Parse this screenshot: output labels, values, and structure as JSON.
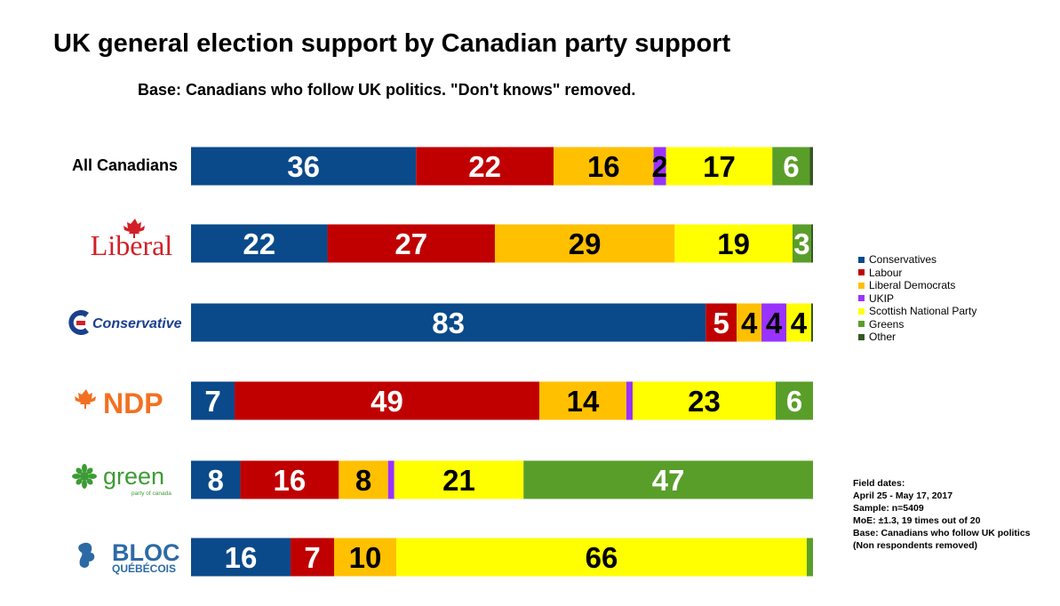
{
  "colors": {
    "Conservatives": "#0a4a8a",
    "Labour": "#c00000",
    "Liberal Democrats": "#ffc000",
    "UKIP": "#9933ff",
    "Scottish National Party": "#ffff00",
    "Greens": "#5a9e2a",
    "Other": "#375623"
  },
  "logos": {
    "liberal": {
      "text": "Liberal",
      "color": "#d21f26"
    },
    "conservative": {
      "text": "Conservative",
      "color": "#1a3f8f"
    },
    "ndp": {
      "text": "NDP",
      "color": "#f37021"
    },
    "green": {
      "text": "green",
      "sub": "party of canada",
      "color": "#3d9b35"
    },
    "bloc": {
      "text": "BLOC",
      "sub": "QUÉBÉCOIS",
      "color": "#2c6aa5"
    }
  },
  "notes": {
    "line1": "Field dates:",
    "line2": "April 25 - May 17, 2017",
    "line3": "Sample: n=5409",
    "line4": "MoE: ±1.3, 19 times out of 20",
    "line5": "Base: Canadians who follow UK politics",
    "line6": "(Non respondents removed)"
  },
  "chart_data": {
    "type": "bar",
    "orientation": "horizontal",
    "stacked": true,
    "title": "UK general election support by Canadian party support",
    "subtitle": "Base: Canadians who follow UK politics. \"Don't knows\" removed.",
    "categories": [
      "All Canadians",
      "Liberal",
      "Conservative",
      "NDP",
      "Green",
      "Bloc Québécois"
    ],
    "category_labels": [
      "All Canadians",
      "",
      "",
      "",
      "",
      ""
    ],
    "legend_position": "right",
    "series": [
      {
        "name": "Conservatives",
        "values": [
          36,
          22,
          83,
          7,
          8,
          16
        ]
      },
      {
        "name": "Labour",
        "values": [
          22,
          27,
          5,
          49,
          16,
          7
        ]
      },
      {
        "name": "Liberal Democrats",
        "values": [
          16,
          29,
          4,
          14,
          8,
          10
        ]
      },
      {
        "name": "UKIP",
        "values": [
          2,
          0,
          4,
          1,
          1,
          0
        ]
      },
      {
        "name": "Scottish National Party",
        "values": [
          17,
          19,
          4,
          23,
          21,
          66
        ]
      },
      {
        "name": "Greens",
        "values": [
          6,
          3,
          0,
          6,
          47,
          1
        ]
      },
      {
        "name": "Other",
        "values": [
          0.5,
          0.3,
          0.3,
          0,
          0,
          0
        ]
      }
    ],
    "data_labels": [
      [
        "36",
        "22",
        "16",
        "2",
        "17",
        "6",
        ""
      ],
      [
        "22",
        "27",
        "29",
        "",
        "19",
        "3",
        ""
      ],
      [
        "83",
        "5",
        "4",
        "4",
        "4",
        "",
        ""
      ],
      [
        "7",
        "49",
        "14",
        "",
        "23",
        "6",
        ""
      ],
      [
        "8",
        "16",
        "8",
        "",
        "21",
        "47",
        ""
      ],
      [
        "16",
        "7",
        "10",
        "",
        "66",
        "",
        ""
      ]
    ]
  }
}
